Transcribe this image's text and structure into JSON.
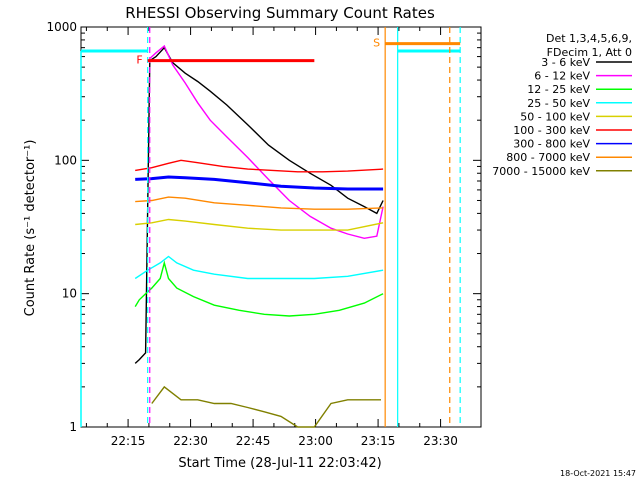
{
  "chart_data": {
    "type": "line",
    "title": "RHESSI Observing Summary Count Rates",
    "xlabel": "Start Time (28-Jul-11 22:03:42)",
    "ylabel": "Count Rate (s⁻¹ detector⁻¹)",
    "yscale": "log",
    "ylim": [
      1,
      1000
    ],
    "xlim_minutes": [
      0,
      96
    ],
    "x_ticks": [
      {
        "label": "22:15",
        "min": 11.3
      },
      {
        "label": "22:30",
        "min": 26.3
      },
      {
        "label": "22:45",
        "min": 41.3
      },
      {
        "label": "23:00",
        "min": 56.3
      },
      {
        "label": "23:15",
        "min": 71.3
      },
      {
        "label": "23:30",
        "min": 86.3
      }
    ],
    "y_ticks": [
      {
        "label": "1",
        "value": 1
      },
      {
        "label": "10",
        "value": 10
      },
      {
        "label": "100",
        "value": 100
      },
      {
        "label": "1000",
        "value": 1000
      }
    ],
    "legend_header": [
      "Det 1,3,4,5,6,9,",
      "FDecim 1, Att 0"
    ],
    "legend_position": "right",
    "series": [
      {
        "name": "3 - 6 keV",
        "color": "#000000",
        "points": [
          [
            13,
            3
          ],
          [
            14,
            3.2
          ],
          [
            15.5,
            3.6
          ],
          [
            16.5,
            560
          ],
          [
            18,
            600
          ],
          [
            20,
            700
          ],
          [
            22,
            540
          ],
          [
            25,
            450
          ],
          [
            28,
            390
          ],
          [
            31,
            330
          ],
          [
            35,
            260
          ],
          [
            40,
            185
          ],
          [
            45,
            130
          ],
          [
            50,
            100
          ],
          [
            55,
            80
          ],
          [
            60,
            65
          ],
          [
            64,
            52
          ],
          [
            68,
            45
          ],
          [
            71,
            40
          ],
          [
            72.5,
            50
          ]
        ]
      },
      {
        "name": "6 - 12 keV",
        "color": "#ff00ff",
        "points": [
          [
            16.5,
            580
          ],
          [
            18,
            640
          ],
          [
            20,
            720
          ],
          [
            22,
            520
          ],
          [
            25,
            380
          ],
          [
            28,
            270
          ],
          [
            31,
            200
          ],
          [
            35,
            150
          ],
          [
            40,
            105
          ],
          [
            45,
            72
          ],
          [
            50,
            50
          ],
          [
            55,
            38
          ],
          [
            60,
            31
          ],
          [
            64,
            28
          ],
          [
            68,
            26
          ],
          [
            71,
            27
          ],
          [
            72.5,
            45
          ]
        ]
      },
      {
        "name": "12 - 25 keV",
        "color": "#00ff00",
        "points": [
          [
            13,
            8
          ],
          [
            14,
            9
          ],
          [
            15.5,
            10
          ],
          [
            17,
            11
          ],
          [
            19,
            13
          ],
          [
            20,
            17
          ],
          [
            21,
            13
          ],
          [
            23,
            11
          ],
          [
            27,
            9.5
          ],
          [
            32,
            8.2
          ],
          [
            38,
            7.5
          ],
          [
            44,
            7
          ],
          [
            50,
            6.8
          ],
          [
            56,
            7
          ],
          [
            62,
            7.5
          ],
          [
            68,
            8.5
          ],
          [
            72.5,
            10
          ]
        ]
      },
      {
        "name": "25 - 50 keV",
        "color": "#00ffff",
        "points": [
          [
            13,
            13
          ],
          [
            16,
            15
          ],
          [
            19,
            17
          ],
          [
            21,
            19
          ],
          [
            23,
            17
          ],
          [
            27,
            15
          ],
          [
            32,
            14
          ],
          [
            40,
            13
          ],
          [
            48,
            13
          ],
          [
            56,
            13
          ],
          [
            64,
            13.5
          ],
          [
            72.5,
            15
          ]
        ]
      },
      {
        "name": "50 - 100 keV",
        "color": "#d8d000",
        "points": [
          [
            13,
            33
          ],
          [
            17,
            34
          ],
          [
            21,
            36
          ],
          [
            25,
            35
          ],
          [
            32,
            33
          ],
          [
            40,
            31
          ],
          [
            48,
            30
          ],
          [
            56,
            30
          ],
          [
            64,
            30
          ],
          [
            72.5,
            34
          ]
        ]
      },
      {
        "name": "100 - 300 keV",
        "color": "#ff0000",
        "points": [
          [
            13,
            84
          ],
          [
            17,
            88
          ],
          [
            21,
            95
          ],
          [
            24,
            100
          ],
          [
            28,
            96
          ],
          [
            34,
            90
          ],
          [
            40,
            86
          ],
          [
            46,
            84
          ],
          [
            52,
            82
          ],
          [
            58,
            82
          ],
          [
            64,
            83
          ],
          [
            72.5,
            86
          ]
        ]
      },
      {
        "name": "300 - 800 keV",
        "color": "#0000ff",
        "points": [
          [
            13,
            72
          ],
          [
            17,
            73
          ],
          [
            21,
            75
          ],
          [
            25,
            74
          ],
          [
            32,
            72
          ],
          [
            40,
            68
          ],
          [
            48,
            64
          ],
          [
            56,
            62
          ],
          [
            64,
            61
          ],
          [
            72.5,
            61
          ]
        ]
      },
      {
        "name": "800 - 7000 keV",
        "color": "#ff8800",
        "points": [
          [
            13,
            49
          ],
          [
            17,
            50
          ],
          [
            21,
            53
          ],
          [
            25,
            52
          ],
          [
            32,
            48
          ],
          [
            40,
            46
          ],
          [
            48,
            44
          ],
          [
            56,
            43
          ],
          [
            64,
            43
          ],
          [
            72.5,
            44
          ]
        ]
      },
      {
        "name": "7000 - 15000 keV",
        "color": "#808000",
        "points": [
          [
            17,
            1.5
          ],
          [
            20,
            2
          ],
          [
            24,
            1.6
          ],
          [
            28,
            1.6
          ],
          [
            32,
            1.5
          ],
          [
            36,
            1.5
          ],
          [
            40,
            1.4
          ],
          [
            44,
            1.3
          ],
          [
            48,
            1.2
          ],
          [
            52,
            1
          ],
          [
            56,
            1
          ],
          [
            60,
            1.5
          ],
          [
            64,
            1.6
          ],
          [
            68,
            1.6
          ],
          [
            72,
            1.6
          ]
        ]
      }
    ],
    "annotations": [
      {
        "label": "F",
        "color": "#ff0000",
        "x_start": 16,
        "x_end": 56,
        "y": 560
      },
      {
        "label": "S",
        "color": "#ff8800",
        "x_start": 73,
        "x_end": 91,
        "y": 750
      }
    ],
    "vertical_markers": [
      {
        "color": "#00ffff",
        "x": 16,
        "style": "dashed"
      },
      {
        "color": "#ff00ff",
        "x": 16.5,
        "style": "dashed"
      },
      {
        "color": "#ff8800",
        "x": 73,
        "style": "solid"
      },
      {
        "color": "#00ffff",
        "x": 76,
        "style": "solid"
      },
      {
        "color": "#ff8800",
        "x": 88.5,
        "style": "dashed"
      },
      {
        "color": "#00ffff",
        "x": 91,
        "style": "dashed"
      }
    ],
    "cyan_bars": [
      {
        "color": "#00ffff",
        "x_start": 0,
        "x_end": 16,
        "y": 660
      },
      {
        "color": "#00ffff",
        "x_start": 76,
        "x_end": 91,
        "y": 660
      }
    ]
  },
  "footer": {
    "date": "18-Oct-2021 15:47"
  }
}
